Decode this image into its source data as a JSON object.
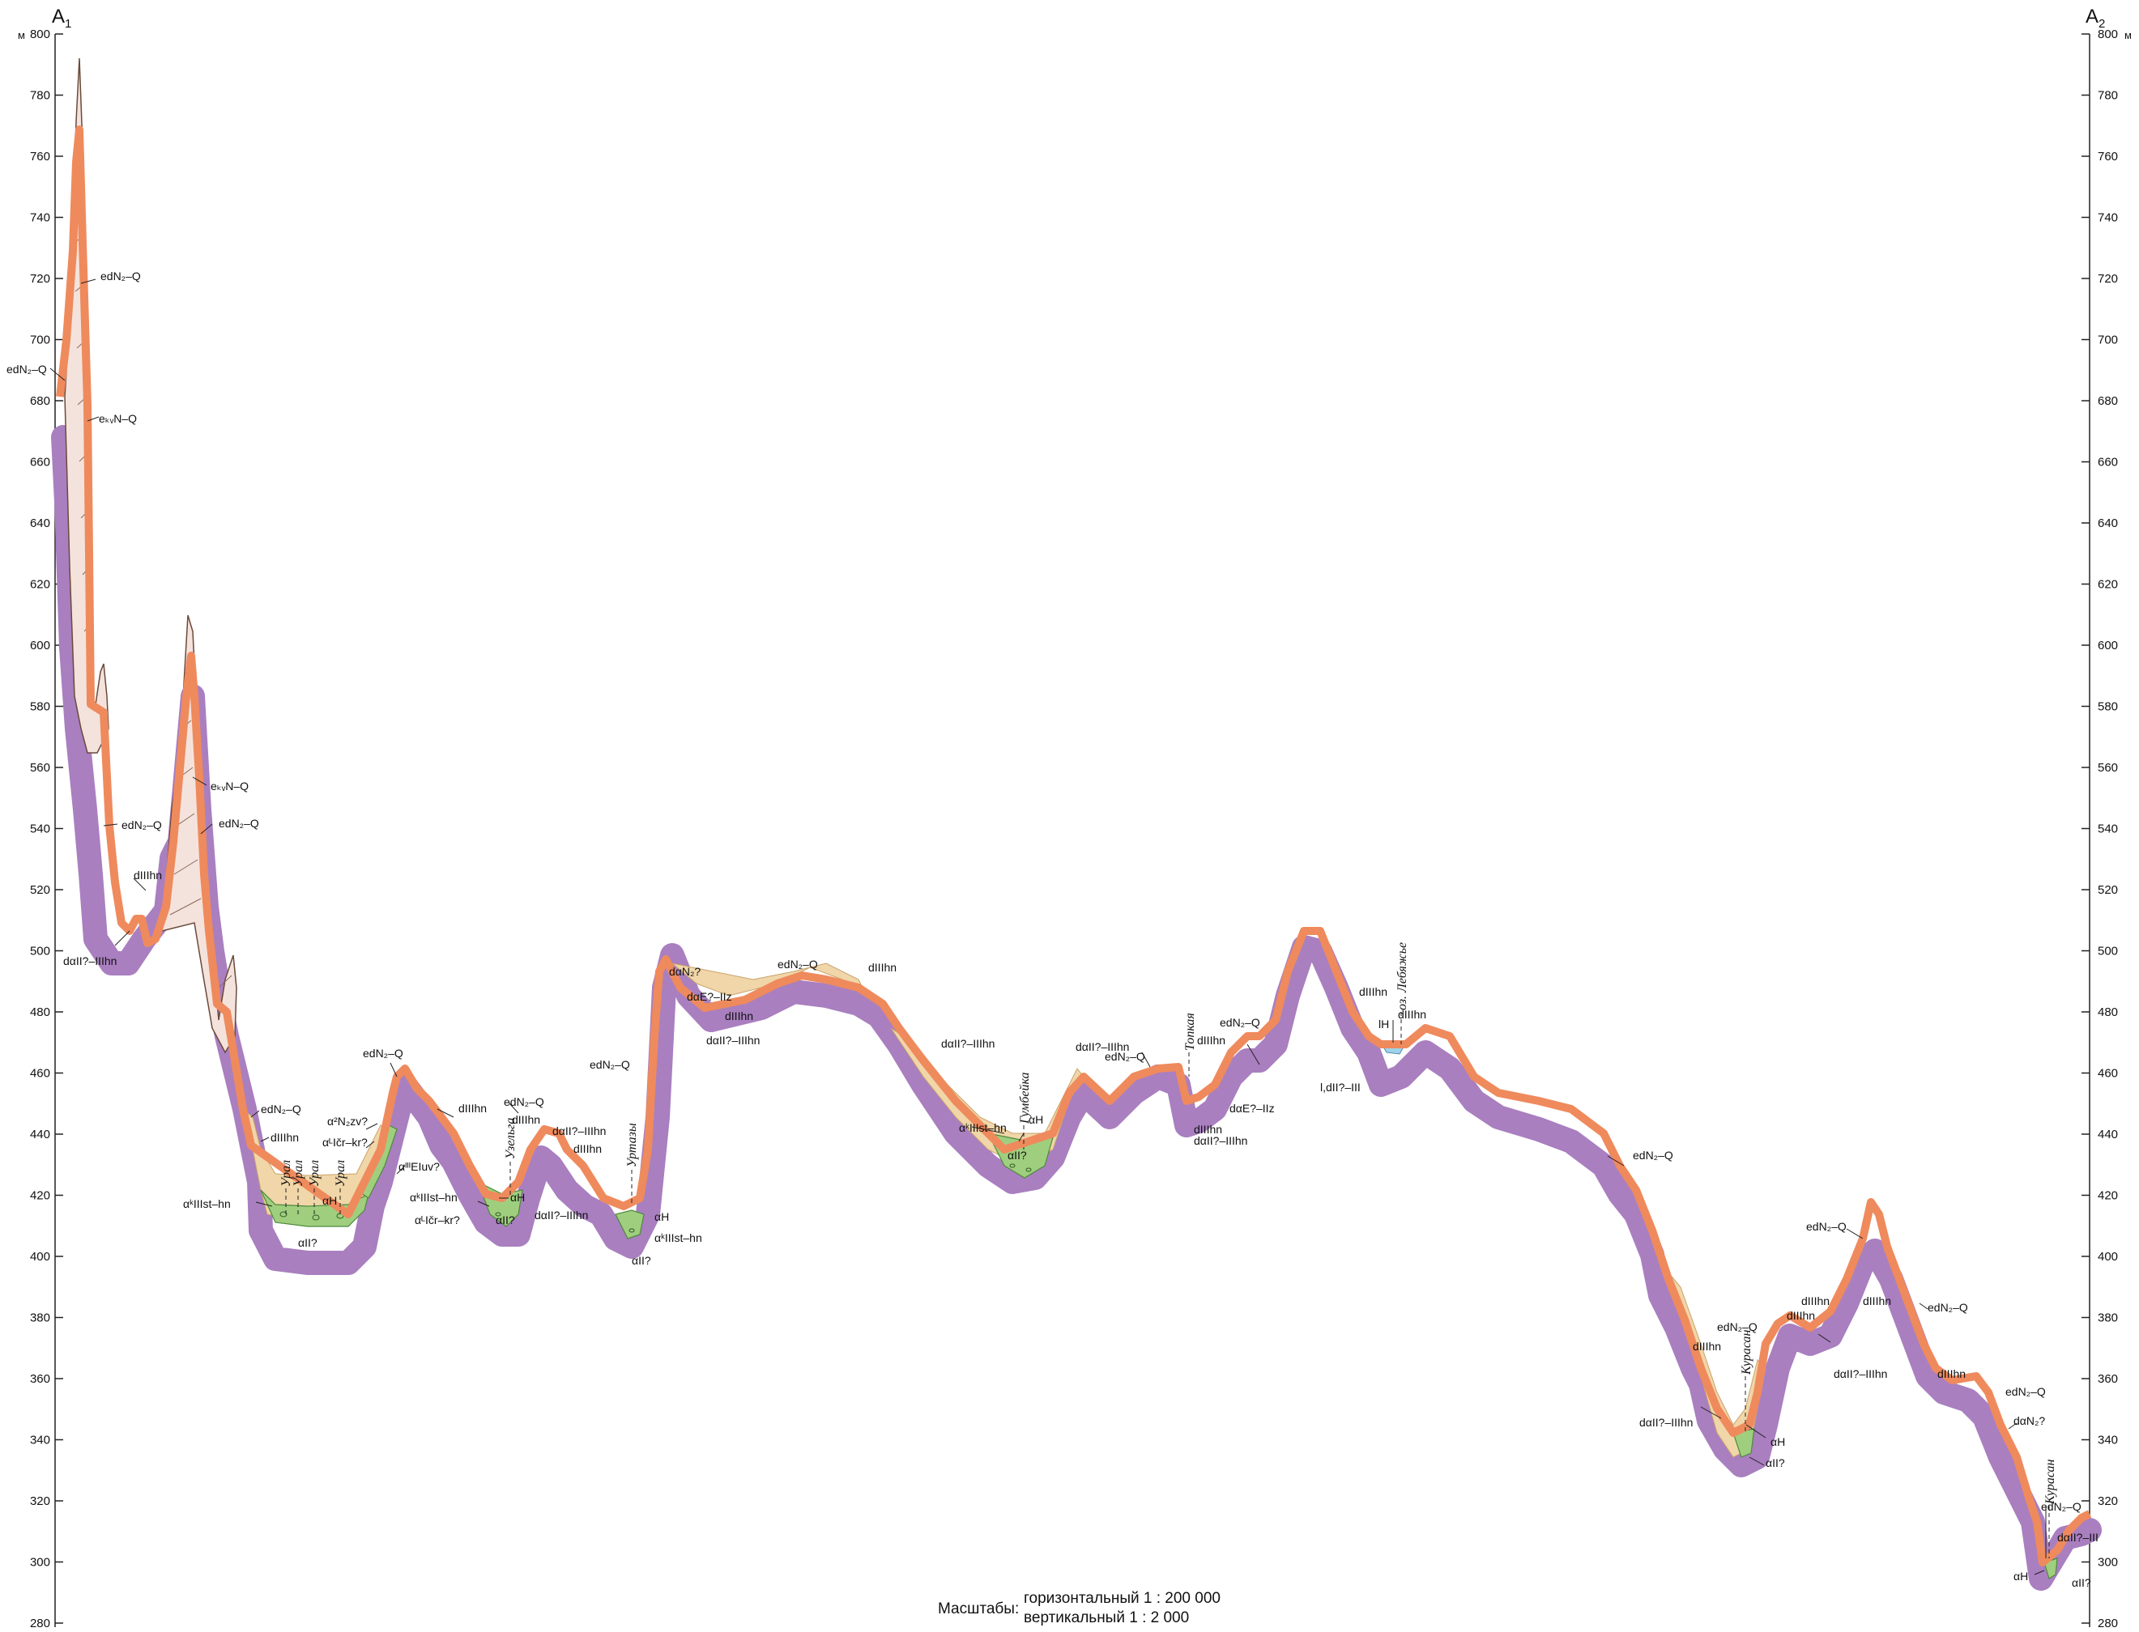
{
  "profile": {
    "start_label": "A",
    "start_sub": "1",
    "end_label": "A",
    "end_sub": "2",
    "unit": "м",
    "elevation_ticks": [
      800,
      780,
      760,
      740,
      720,
      700,
      680,
      660,
      640,
      620,
      600,
      580,
      560,
      540,
      520,
      500,
      480,
      460,
      440,
      420,
      400,
      380,
      360,
      340,
      320,
      300,
      280
    ]
  },
  "colors": {
    "bedrock_band": "#a97fc0",
    "surface_band": "#ef8a5d",
    "loam": "#f0d6a8",
    "alluvium": "#9fcf7e",
    "lake": "#9fd3e8",
    "weathering": "#f4e3dc"
  },
  "units": [
    "edN₂–Q",
    "edN₂–Q",
    "eₖᵥN–Q",
    "edN₂–Q",
    "dIIIhn",
    "dαII?–IIIhn",
    "eₖᵥN–Q",
    "edN₂–Q",
    "edN₂–Q",
    "dIIIhn",
    "αᵏIIIst–hn",
    "αII?",
    "αH",
    "edN₂–Q",
    "α²N₂zv?",
    "αᴸIčr–kr?",
    "αᴵᴵᴵEIuv?",
    "dIIIhn",
    "αᵏIIIst–hn",
    "αᴸIčr–kr?",
    "αII?",
    "αH",
    "edN₂–Q",
    "dIIIhn",
    "dαII?–IIIhn",
    "dIIIhn",
    "dαII?–IIIhn",
    "αH",
    "αᵏIIIst–hn",
    "αII?",
    "edN₂–Q",
    "dαN₂?",
    "dαE?–IIz",
    "dIIIhn",
    "dαII?–IIIhn",
    "edN₂–Q",
    "dIIIhn",
    "dαII?–IIIhn",
    "αᵏIIIst–hn",
    "αH",
    "αII?",
    "dαII?–IIIhn",
    "edN₂–Q",
    "dIIIhn",
    "edN₂–Q",
    "dαE?–IIz",
    "dIIIhn",
    "dαII?–IIIhn",
    "dIIIhn",
    "lH",
    "dIIIhn",
    "l,dII?–III",
    "edN₂–Q",
    "edN₂–Q",
    "dIIIhn",
    "dIIIhn",
    "edN₂–Q",
    "dIIIhn",
    "dαII?–IIIhn",
    "dαII?–IIIhn",
    "αH",
    "αII?",
    "dIIIhn",
    "edN₂–Q",
    "dIIIhn",
    "edN₂–Q",
    "dαN₂?",
    "edN₂–Q",
    "dαII?–III",
    "αH",
    "αII?"
  ],
  "rivers": [
    "Урал",
    "Урал",
    "Урал",
    "Урал",
    "Узельга",
    "Уртазы",
    "Гумбейка",
    "Топкая",
    "оз. Лебяжье",
    "Курасан",
    "Курасан"
  ],
  "scale": {
    "caption": "Масштабы:",
    "horizontal": "горизонтальный 1 : 200 000",
    "vertical": "вертикальный 1 : 2 000"
  }
}
